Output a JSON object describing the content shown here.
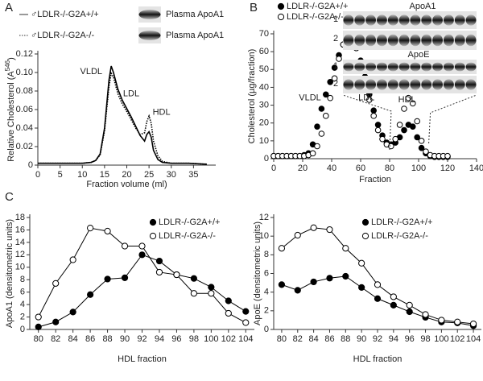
{
  "chart_data": [
    {
      "type": "line",
      "panel_label": "A",
      "xlabel": "Fraction volume (ml)",
      "ylabel": "Relative Cholesterol (A",
      "ylabel_sup": "546",
      "ylabel_end": ")",
      "xlim": [
        0,
        40
      ],
      "xticks": [
        0,
        5,
        10,
        15,
        20,
        25,
        30,
        35
      ],
      "ylim": [
        0,
        0.12
      ],
      "yticks": [
        0,
        0.02,
        0.04,
        0.06,
        0.08,
        {
          "value": 0.1,
          "label": "0.10"
        },
        0.12
      ],
      "annotations": [
        "VLDL",
        "LDL",
        "HDL"
      ],
      "blot_labels": [
        "Plasma ApoA1",
        "Plasma ApoA1"
      ],
      "x": [
        0,
        4,
        8,
        10,
        12,
        13,
        14,
        15,
        16,
        16.5,
        17,
        18,
        19,
        20,
        21,
        22,
        23,
        24,
        24.5,
        25,
        25.5,
        26,
        27,
        28,
        30,
        34,
        38
      ],
      "series": [
        {
          "name": "♂LDLR-/-G2A+/+",
          "color": "#000000",
          "line_style": "solid",
          "values": [
            0.002,
            0.002,
            0.002,
            0.002,
            0.003,
            0.005,
            0.012,
            0.04,
            0.092,
            0.107,
            0.1,
            0.082,
            0.07,
            0.061,
            0.052,
            0.042,
            0.032,
            0.026,
            0.033,
            0.036,
            0.03,
            0.016,
            0.006,
            0.003,
            0.002,
            0.002,
            0.001
          ]
        },
        {
          "name": "♂LDLR-/-G2A-/-",
          "color": "#000000",
          "line_style": "dotted",
          "values": [
            0.002,
            0.002,
            0.002,
            0.002,
            0.003,
            0.005,
            0.011,
            0.037,
            0.085,
            0.099,
            0.095,
            0.077,
            0.066,
            0.058,
            0.049,
            0.04,
            0.033,
            0.035,
            0.047,
            0.053,
            0.045,
            0.026,
            0.01,
            0.004,
            0.002,
            0.002,
            0.001
          ]
        }
      ]
    },
    {
      "type": "scatter",
      "panel_label": "B",
      "xlabel": "Fraction",
      "ylabel": "Cholesterol (µg/fraction)",
      "xlim": [
        0,
        140
      ],
      "xticks": [
        0,
        20,
        40,
        60,
        80,
        100,
        120,
        140
      ],
      "ylim": [
        0,
        70
      ],
      "yticks": [
        0,
        10,
        20,
        30,
        40,
        50,
        60,
        70
      ],
      "annotations": [
        "VLDL",
        "LDL",
        "HDL"
      ],
      "blot_labels": [
        "ApoA1",
        "ApoE"
      ],
      "lane_labels": [
        "1",
        "2",
        "1",
        "2"
      ],
      "x": [
        0,
        3,
        6,
        9,
        12,
        15,
        18,
        21,
        24,
        27,
        30,
        33,
        36,
        39,
        42,
        45,
        48,
        51,
        54,
        57,
        60,
        63,
        66,
        69,
        72,
        75,
        78,
        81,
        84,
        87,
        90,
        93,
        96,
        99,
        102,
        105,
        108,
        111,
        114,
        117,
        120
      ],
      "series": [
        {
          "name": "LDLR-/-G2A+/+",
          "color": "#000000",
          "marker": "filled",
          "values": [
            1.5,
            1.5,
            1.5,
            1.5,
            1.5,
            1.5,
            1.5,
            2,
            3,
            8,
            18,
            28,
            36,
            43,
            51,
            58,
            64,
            67,
            66,
            62,
            55,
            46,
            36,
            27,
            19,
            13,
            9,
            8,
            9,
            12,
            16,
            19,
            18,
            12,
            6,
            3,
            1.5,
            1,
            1,
            1,
            1
          ]
        },
        {
          "name": "LDLR-/-G2A-/-",
          "color": "#000000",
          "marker": "open",
          "values": [
            1.5,
            1.5,
            1.5,
            1.5,
            1.5,
            1.5,
            1.5,
            1.5,
            2,
            3,
            7,
            14,
            24,
            34,
            45,
            56,
            64,
            67,
            66,
            62,
            53,
            43,
            33,
            24,
            16,
            11,
            8,
            7,
            11,
            19,
            28,
            34,
            31,
            21,
            10,
            4,
            2,
            1.5,
            1.5,
            1.5,
            1.5
          ]
        }
      ]
    },
    {
      "type": "line",
      "panel_label": "C",
      "xlabel": "HDL fraction",
      "ylabel": "ApoA1 (densitometric units)",
      "xlim": [
        79,
        105
      ],
      "xticks": [
        80,
        82,
        84,
        86,
        88,
        90,
        92,
        94,
        96,
        98,
        100,
        102,
        104
      ],
      "ylim": [
        0,
        18
      ],
      "yticks": [
        0,
        2,
        4,
        6,
        8,
        10,
        12,
        14,
        16,
        18
      ],
      "x": [
        80,
        82,
        84,
        86,
        88,
        90,
        92,
        94,
        96,
        98,
        100,
        102,
        104
      ],
      "series": [
        {
          "name": "LDLR-/-G2A+/+",
          "color": "#000000",
          "marker": "filled",
          "values": [
            0.4,
            1.2,
            2.8,
            5.6,
            8.1,
            8.3,
            12,
            11,
            8.8,
            8.2,
            6.8,
            4.6,
            2.9
          ]
        },
        {
          "name": "LDLR-/-G2A-/-",
          "color": "#000000",
          "marker": "open",
          "values": [
            2,
            7.4,
            11.2,
            16.3,
            15.8,
            13.4,
            13.4,
            9.2,
            8.8,
            5.8,
            5.8,
            2.6,
            1.1
          ]
        }
      ]
    },
    {
      "type": "line",
      "xlabel": "HDL fraction",
      "ylabel": "ApoE (densitometric units)",
      "xlim": [
        79,
        105
      ],
      "xticks": [
        80,
        82,
        84,
        86,
        88,
        90,
        92,
        94,
        96,
        98,
        100,
        102,
        104
      ],
      "ylim": [
        0,
        12
      ],
      "yticks": [
        0,
        2,
        4,
        6,
        8,
        10,
        12
      ],
      "x": [
        80,
        82,
        84,
        86,
        88,
        90,
        92,
        94,
        96,
        98,
        100,
        102,
        104
      ],
      "series": [
        {
          "name": "LDLR-/-G2A+/+",
          "color": "#000000",
          "marker": "filled",
          "values": [
            4.8,
            4.2,
            5.1,
            5.5,
            5.7,
            4.5,
            3.3,
            2.6,
            1.9,
            1.3,
            0.8,
            0.7,
            0.4
          ]
        },
        {
          "name": "LDLR-/-G2A-/-",
          "color": "#000000",
          "marker": "open",
          "values": [
            8.7,
            10.1,
            10.9,
            10.7,
            8.7,
            7.1,
            4.8,
            3.5,
            2.6,
            1.6,
            1.0,
            0.8,
            0.6
          ]
        }
      ]
    }
  ]
}
